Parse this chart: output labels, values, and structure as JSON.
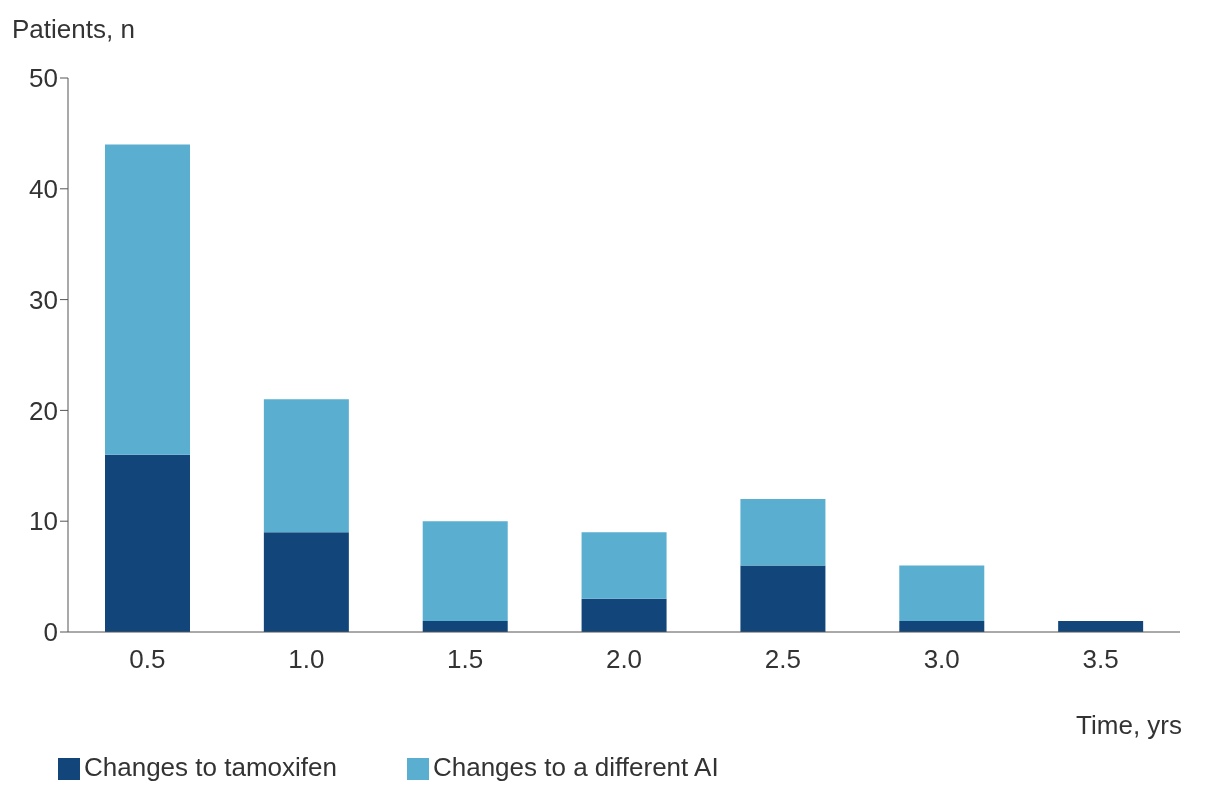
{
  "chart_data": {
    "type": "bar",
    "xlabel": "Time, yrs",
    "ylabel": "Patients, n",
    "categories": [
      "0.5",
      "1.0",
      "1.5",
      "2.0",
      "2.5",
      "3.0",
      "3.5"
    ],
    "series": [
      {
        "name": "Changes to tamoxifen",
        "color": "#12467a",
        "values": [
          16,
          9,
          1,
          3,
          6,
          1,
          1
        ]
      },
      {
        "name": "Changes to a different AI",
        "color": "#5aaecf",
        "values": [
          28,
          12,
          9,
          6,
          6,
          5,
          0
        ]
      }
    ],
    "stacked": true,
    "ylim": [
      0,
      50
    ],
    "yticks": [
      0,
      10,
      20,
      30,
      40,
      50
    ],
    "grid": false,
    "legend": "bottom left"
  }
}
